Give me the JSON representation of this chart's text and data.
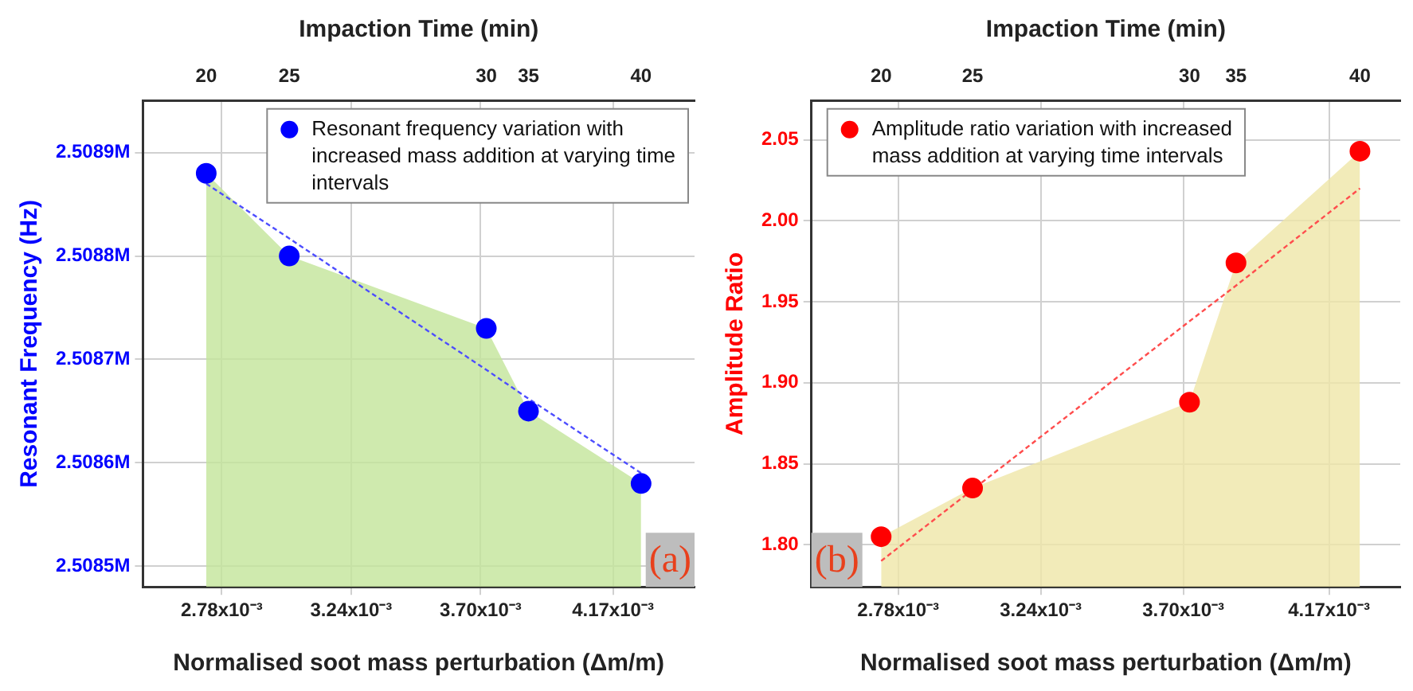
{
  "chart_data": [
    {
      "type": "scatter",
      "xlabel": "Normalised soot mass perturbation (Δm/m)",
      "x2label": "Impaction Time (min)",
      "ylabel": "Resonant Frequency (Hz)",
      "x": [
        0.002725,
        0.00302,
        0.00372,
        0.00387,
        0.00427
      ],
      "xlim": [
        0.0025,
        0.00446
      ],
      "xticks": [
        {
          "value": 0.00278,
          "label": "2.78x10⁻³"
        },
        {
          "value": 0.00324,
          "label": "3.24x10⁻³"
        },
        {
          "value": 0.0037,
          "label": "3.70x10⁻³"
        },
        {
          "value": 0.00417,
          "label": "4.17x10⁻³"
        }
      ],
      "ylim": [
        2508480,
        2508950
      ],
      "yticks": [
        {
          "value": 2508500,
          "label": "2.5085M"
        },
        {
          "value": 2508600,
          "label": "2.5086M"
        },
        {
          "value": 2508700,
          "label": "2.5087M"
        },
        {
          "value": 2508800,
          "label": "2.5088M"
        },
        {
          "value": 2508900,
          "label": "2.5089M"
        }
      ],
      "series": [
        {
          "type": "area",
          "color": "#c3e59a",
          "values": [
            2508880,
            2508800,
            2508730,
            2508650,
            2508580
          ]
        },
        {
          "type": "line",
          "color": "#4d4dff",
          "line_style": "dotted",
          "marker": "none",
          "values": [
            2508870,
            2508817,
            2508690,
            2508662,
            2508590
          ]
        },
        {
          "name": "Resonant frequency variation with increased mass addition at varying time intervals",
          "color": "#0000ff",
          "marker": "circle",
          "values": [
            2508880,
            2508800,
            2508730,
            2508650,
            2508580
          ]
        }
      ],
      "grid": true,
      "legend": "top right",
      "annotations": [
        "(a)",
        "20",
        "25",
        "30",
        "35",
        "40"
      ]
    },
    {
      "type": "scatter",
      "xlabel": "Normalised soot mass perturbation (Δm/m)",
      "x2label": "Impaction Time (min)",
      "ylabel": "Amplitude Ratio",
      "x": [
        0.002725,
        0.00302,
        0.00372,
        0.00387,
        0.00427
      ],
      "xlim": [
        0.0025,
        0.0044
      ],
      "xticks": [
        {
          "value": 0.00278,
          "label": "2.78x10⁻³"
        },
        {
          "value": 0.00324,
          "label": "3.24x10⁻³"
        },
        {
          "value": 0.0037,
          "label": "3.70x10⁻³"
        },
        {
          "value": 0.00417,
          "label": "4.17x10⁻³"
        }
      ],
      "ylim": [
        1.774,
        2.074
      ],
      "yticks": [
        {
          "value": 1.8,
          "label": "1.80"
        },
        {
          "value": 1.85,
          "label": "1.85"
        },
        {
          "value": 1.9,
          "label": "1.90"
        },
        {
          "value": 1.95,
          "label": "1.95"
        },
        {
          "value": 2.0,
          "label": "2.00"
        },
        {
          "value": 2.05,
          "label": "2.05"
        }
      ],
      "series": [
        {
          "type": "area",
          "color": "#efe6a8",
          "values": [
            1.805,
            1.835,
            1.888,
            1.974,
            2.043
          ]
        },
        {
          "type": "line",
          "color": "#ff4d4d",
          "line_style": "dotted",
          "marker": "none",
          "values": [
            1.79,
            1.834,
            1.938,
            1.96,
            2.02
          ]
        },
        {
          "name": "Amplitude ratio variation with increased mass addition at varying time intervals",
          "color": "#ff0000",
          "marker": "circle",
          "values": [
            1.805,
            1.835,
            1.888,
            1.974,
            2.043
          ]
        }
      ],
      "grid": true,
      "legend": "top left",
      "annotations": [
        "(b)",
        "20",
        "25",
        "30",
        "35",
        "40"
      ]
    }
  ]
}
